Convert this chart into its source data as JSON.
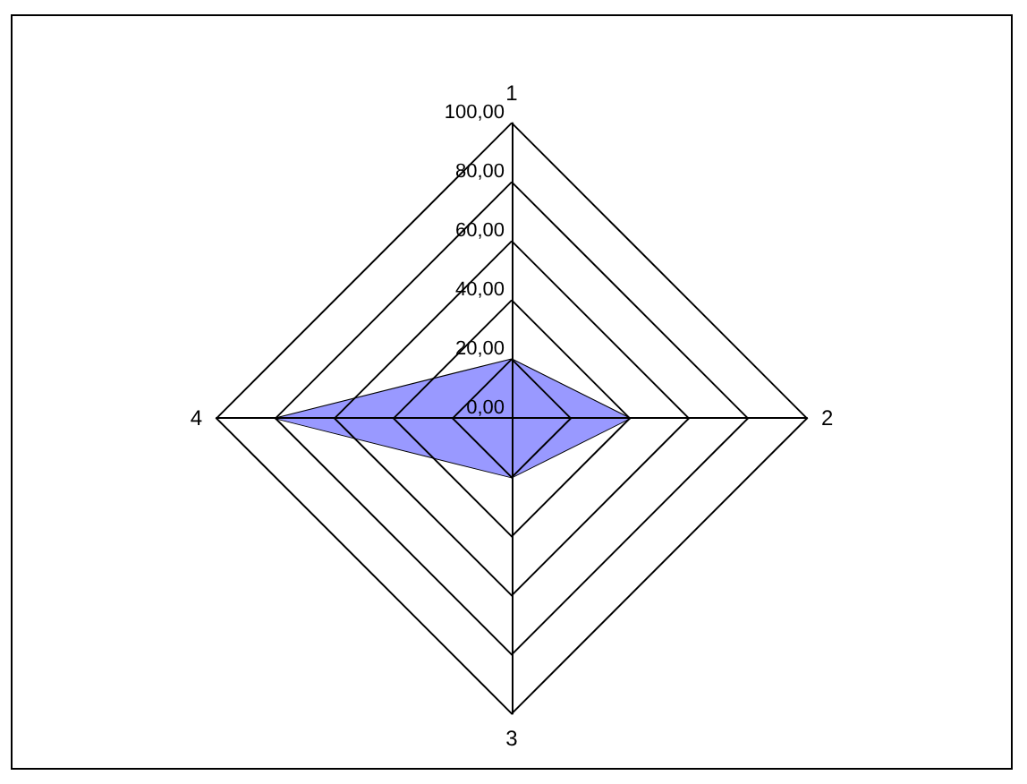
{
  "chart_data": {
    "type": "radar",
    "categories": [
      "1",
      "2",
      "3",
      "4"
    ],
    "series": [
      {
        "color": "#9999ff",
        "values": [
          20,
          40,
          20,
          80
        ]
      }
    ],
    "ylim": [
      0,
      100
    ],
    "yticks": [
      {
        "value": 0,
        "label": "0,00"
      },
      {
        "value": 20,
        "label": "20,00"
      },
      {
        "value": 40,
        "label": "40,00"
      },
      {
        "value": 60,
        "label": "60,00"
      },
      {
        "value": 80,
        "label": "80,00"
      },
      {
        "value": 100,
        "label": "100,00"
      }
    ],
    "marker": "none"
  }
}
